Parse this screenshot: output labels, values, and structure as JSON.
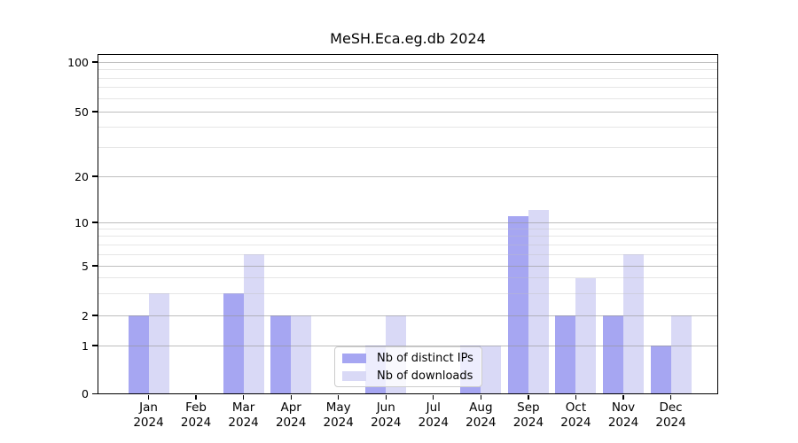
{
  "figure": {
    "title": "MeSH.Eca.eg.db 2024"
  },
  "chart_data": {
    "type": "bar",
    "title": "MeSH.Eca.eg.db 2024",
    "categories": [
      "Jan 2024",
      "Feb 2024",
      "Mar 2024",
      "Apr 2024",
      "May 2024",
      "Jun 2024",
      "Jul 2024",
      "Aug 2024",
      "Sep 2024",
      "Oct 2024",
      "Nov 2024",
      "Dec 2024"
    ],
    "month_labels": [
      "Jan",
      "Feb",
      "Mar",
      "Apr",
      "May",
      "Jun",
      "Jul",
      "Aug",
      "Sep",
      "Oct",
      "Nov",
      "Dec"
    ],
    "year_label": "2024",
    "series": [
      {
        "name": "Nb of distinct IPs",
        "color": "#a6a6f2",
        "values": [
          2,
          0,
          3,
          2,
          0,
          1,
          0,
          1,
          11,
          2,
          2,
          1
        ]
      },
      {
        "name": "Nb of downloads",
        "color": "#d9d9f6",
        "values": [
          3,
          0,
          6,
          2,
          0,
          2,
          0,
          1,
          12,
          4,
          6,
          2
        ]
      }
    ],
    "xlabel": "",
    "ylabel": "",
    "yaxis": {
      "scale": "log-like with zero baseline",
      "major_ticks": [
        0,
        1,
        2,
        5,
        10,
        20,
        50,
        100
      ],
      "minor_gridlines": [
        3,
        4,
        6,
        7,
        8,
        9,
        30,
        40,
        60,
        70,
        80,
        90
      ],
      "ylim": [
        0,
        110
      ]
    },
    "legend": {
      "position": "lower center",
      "entries": [
        "Nb of distinct IPs",
        "Nb of downloads"
      ]
    },
    "grid": {
      "horizontal_major": true,
      "horizontal_minor": true,
      "drawn_above_bars": true
    },
    "colors": {
      "distinct_ips_bar": "#a6a6f2",
      "downloads_bar": "#d9d9f6",
      "major_grid": "#c8c8c8",
      "minor_grid": "#e9e9e9",
      "spine": "#000000",
      "background": "#ffffff"
    }
  }
}
